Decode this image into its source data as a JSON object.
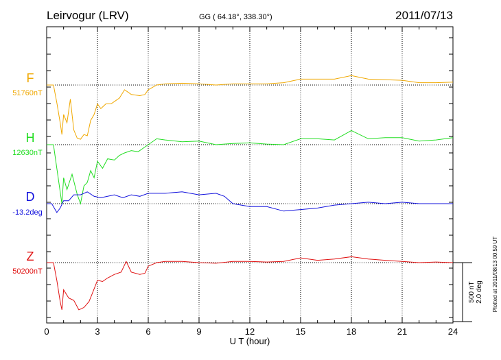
{
  "header": {
    "station": "Leirvogur (LRV)",
    "coords": "GG ( 64.18°, 338.30°)",
    "date": "2011/07/13"
  },
  "footer": {
    "xlabel": "U T (hour)",
    "plotted": "Plotted at 2011/08/13 00:59 UT",
    "scale_nt": "500 nT",
    "scale_deg": "2.0 deg"
  },
  "colors": {
    "F": "#f0a800",
    "H": "#22dd22",
    "D": "#1111dd",
    "Z": "#e01010",
    "axis": "#000000"
  },
  "chart_data": {
    "type": "line",
    "title": "Leirvogur (LRV)",
    "xlabel": "U T (hour)",
    "ylabel": "",
    "xlim": [
      0,
      24
    ],
    "xticks": [
      0,
      3,
      6,
      9,
      12,
      15,
      18,
      21,
      24
    ],
    "grid": "dotted vertical lines every 3 hours; dotted baseline per panel",
    "units_note": "values are deviations from each panel's baseline (nT for F, H, Z; deg for D)",
    "series": [
      {
        "name": "F",
        "baseline_label": "51760nT",
        "unit": "nT",
        "x": [
          0,
          0.4,
          0.6,
          0.8,
          0.9,
          1.0,
          1.2,
          1.4,
          1.6,
          1.8,
          2.0,
          2.2,
          2.4,
          2.6,
          2.8,
          3.0,
          3.2,
          3.5,
          3.8,
          4.0,
          4.3,
          4.6,
          4.8,
          5.0,
          5.5,
          5.8,
          6.0,
          6.5,
          7.0,
          8,
          9,
          10,
          11,
          12,
          13,
          14,
          15,
          16,
          17,
          18,
          19,
          20,
          21,
          22,
          23,
          24
        ],
        "values": [
          0,
          0,
          -150,
          -320,
          -420,
          -250,
          -320,
          -120,
          -380,
          -450,
          -460,
          -420,
          -430,
          -300,
          -250,
          -160,
          -200,
          -160,
          -160,
          -140,
          -110,
          -40,
          -60,
          -80,
          -90,
          -80,
          -40,
          0,
          10,
          15,
          10,
          0,
          10,
          10,
          10,
          20,
          50,
          50,
          50,
          80,
          50,
          45,
          40,
          20,
          20,
          25
        ]
      },
      {
        "name": "H",
        "baseline_label": "12630nT",
        "unit": "nT",
        "x": [
          0,
          0.4,
          0.6,
          0.8,
          0.9,
          1.0,
          1.2,
          1.5,
          1.8,
          2.0,
          2.2,
          2.4,
          2.6,
          2.8,
          3.0,
          3.3,
          3.6,
          4.0,
          4.3,
          4.6,
          5.0,
          5.4,
          5.8,
          6.0,
          6.5,
          7.0,
          8,
          9,
          10,
          11,
          12,
          13,
          14,
          15,
          16,
          17,
          18,
          19,
          20,
          21,
          22,
          23,
          24
        ],
        "values": [
          0,
          0,
          -200,
          -400,
          -500,
          -280,
          -380,
          -250,
          -420,
          -500,
          -350,
          -320,
          -220,
          -280,
          -140,
          -200,
          -120,
          -130,
          -90,
          -70,
          -50,
          -60,
          -20,
          0,
          50,
          40,
          25,
          30,
          0,
          10,
          15,
          5,
          0,
          50,
          50,
          40,
          120,
          50,
          60,
          60,
          30,
          40,
          60
        ]
      },
      {
        "name": "D",
        "baseline_label": "-13.2deg",
        "unit": "deg",
        "x": [
          0,
          0.3,
          0.6,
          0.8,
          1.0,
          1.3,
          1.6,
          2.0,
          2.4,
          2.8,
          3.2,
          3.6,
          4.0,
          4.5,
          5.0,
          5.5,
          6.0,
          7.0,
          8,
          9,
          10,
          10.5,
          11,
          12,
          13,
          14,
          15,
          16,
          17,
          18,
          19,
          20,
          21,
          22,
          23,
          24
        ],
        "values": [
          0,
          0,
          -0.3,
          -0.15,
          0.1,
          0.1,
          0.3,
          0.3,
          0.4,
          0.25,
          0.2,
          0.25,
          0.3,
          0.2,
          0.3,
          0.25,
          0.35,
          0.35,
          0.4,
          0.3,
          0.35,
          0.25,
          0.0,
          -0.1,
          -0.1,
          -0.25,
          -0.2,
          -0.15,
          -0.05,
          0.0,
          0.05,
          0.0,
          0.05,
          0.0,
          0.0,
          0.0
        ]
      },
      {
        "name": "Z",
        "baseline_label": "50200nT",
        "unit": "nT",
        "x": [
          0,
          0.4,
          0.6,
          0.8,
          0.9,
          1.0,
          1.3,
          1.6,
          1.9,
          2.2,
          2.5,
          2.7,
          3.0,
          3.3,
          3.6,
          4.0,
          4.4,
          4.7,
          5.0,
          5.5,
          5.8,
          6.0,
          6.5,
          7,
          8,
          9,
          10,
          11,
          12,
          13,
          14,
          15,
          16,
          17,
          18,
          19,
          20,
          21,
          22,
          23,
          24
        ],
        "values": [
          0,
          0,
          -150,
          -330,
          -400,
          -230,
          -300,
          -320,
          -400,
          -380,
          -330,
          -260,
          -150,
          -160,
          -130,
          -100,
          -80,
          10,
          -80,
          -100,
          -90,
          -30,
          0,
          10,
          10,
          0,
          -5,
          10,
          10,
          5,
          10,
          40,
          20,
          30,
          50,
          30,
          20,
          10,
          0,
          5,
          0
        ]
      }
    ]
  }
}
